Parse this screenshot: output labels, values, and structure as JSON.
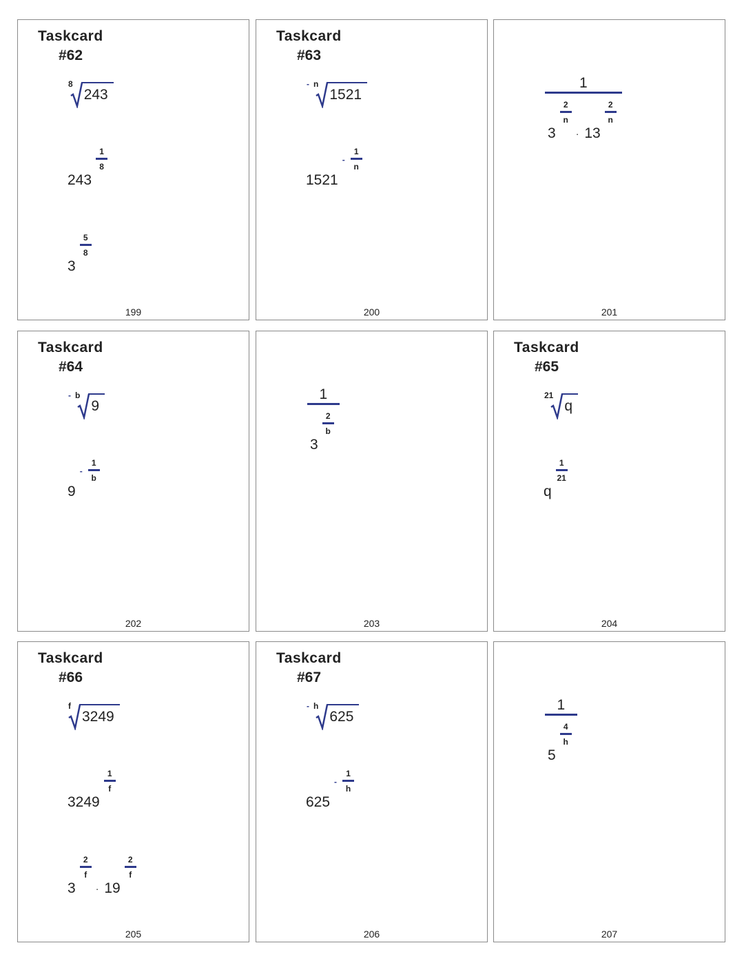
{
  "accent_color": "#2e3a8c",
  "cards": [
    {
      "title": "Taskcard",
      "number": "#62",
      "page": "199",
      "items": [
        {
          "type": "radical",
          "sign": "",
          "index": "8",
          "radicand": "243"
        },
        {
          "type": "power",
          "operator": "·",
          "terms": [
            {
              "base": "243",
              "sign": "",
              "num": "1",
              "den": "8"
            }
          ]
        },
        {
          "type": "power",
          "operator": "·",
          "terms": [
            {
              "base": "3",
              "sign": "",
              "num": "5",
              "den": "8"
            }
          ]
        }
      ]
    },
    {
      "title": "Taskcard",
      "number": "#63",
      "page": "200",
      "items": [
        {
          "type": "radical",
          "sign": "-",
          "index": "n",
          "radicand": "1521"
        },
        {
          "type": "power",
          "operator": "·",
          "terms": [
            {
              "base": "1521",
              "sign": "-",
              "num": "1",
              "den": "n"
            }
          ]
        }
      ]
    },
    {
      "page": "201",
      "items": [
        {
          "type": "reciprocal",
          "numerator": "1",
          "operator": "·",
          "terms": [
            {
              "base": "3",
              "sign": "",
              "num": "2",
              "den": "n"
            },
            {
              "base": "13",
              "sign": "",
              "num": "2",
              "den": "n"
            }
          ]
        }
      ]
    },
    {
      "title": "Taskcard",
      "number": "#64",
      "page": "202",
      "items": [
        {
          "type": "radical",
          "sign": "-",
          "index": "b",
          "radicand": "9"
        },
        {
          "type": "power",
          "operator": "·",
          "terms": [
            {
              "base": "9",
              "sign": "-",
              "num": "1",
              "den": "b"
            }
          ]
        }
      ]
    },
    {
      "page": "203",
      "items": [
        {
          "type": "reciprocal",
          "numerator": "1",
          "operator": "·",
          "terms": [
            {
              "base": "3",
              "sign": "",
              "num": "2",
              "den": "b"
            }
          ]
        }
      ]
    },
    {
      "title": "Taskcard",
      "number": "#65",
      "page": "204",
      "items": [
        {
          "type": "radical",
          "sign": "",
          "index": "21",
          "radicand": "q"
        },
        {
          "type": "power",
          "operator": "·",
          "terms": [
            {
              "base": "q",
              "sign": "",
              "num": "1",
              "den": "21"
            }
          ]
        }
      ]
    },
    {
      "title": "Taskcard",
      "number": "#66",
      "page": "205",
      "items": [
        {
          "type": "radical",
          "sign": "",
          "index": "f",
          "radicand": "3249"
        },
        {
          "type": "power",
          "operator": "·",
          "terms": [
            {
              "base": "3249",
              "sign": "",
              "num": "1",
              "den": "f"
            }
          ]
        },
        {
          "type": "power",
          "operator": "·",
          "terms": [
            {
              "base": "3",
              "sign": "",
              "num": "2",
              "den": "f"
            },
            {
              "base": "19",
              "sign": "",
              "num": "2",
              "den": "f"
            }
          ]
        }
      ]
    },
    {
      "title": "Taskcard",
      "number": "#67",
      "page": "206",
      "items": [
        {
          "type": "radical",
          "sign": "-",
          "index": "h",
          "radicand": "625"
        },
        {
          "type": "power",
          "operator": "·",
          "terms": [
            {
              "base": "625",
              "sign": "-",
              "num": "1",
              "den": "h"
            }
          ]
        }
      ]
    },
    {
      "page": "207",
      "items": [
        {
          "type": "reciprocal",
          "numerator": "1",
          "operator": "·",
          "terms": [
            {
              "base": "5",
              "sign": "",
              "num": "4",
              "den": "h"
            }
          ]
        }
      ]
    }
  ]
}
